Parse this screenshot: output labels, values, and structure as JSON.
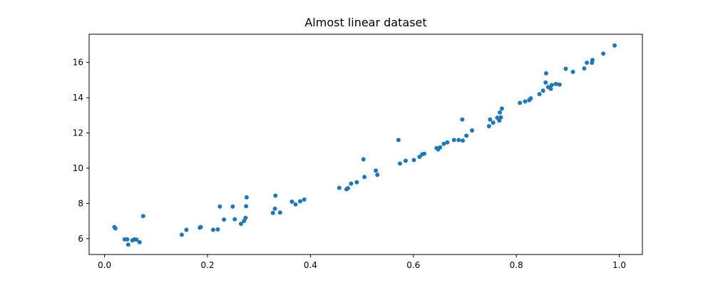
{
  "chart_data": {
    "type": "scatter",
    "title": "Almost linear dataset",
    "xlabel": "",
    "ylabel": "",
    "xlim": [
      -0.03,
      1.045
    ],
    "ylim": [
      5.1,
      17.6
    ],
    "xticks": [
      0.0,
      0.2,
      0.4,
      0.6,
      0.8,
      1.0
    ],
    "xtick_labels": [
      "0.0",
      "0.2",
      "0.4",
      "0.6",
      "0.8",
      "1.0"
    ],
    "yticks": [
      6,
      8,
      10,
      12,
      14,
      16
    ],
    "ytick_labels": [
      "6",
      "8",
      "10",
      "12",
      "14",
      "16"
    ],
    "grid": false,
    "marker_color": "#1f77b4",
    "points": [
      {
        "x": 0.019,
        "y": 6.66
      },
      {
        "x": 0.021,
        "y": 6.58
      },
      {
        "x": 0.039,
        "y": 5.96
      },
      {
        "x": 0.044,
        "y": 5.96
      },
      {
        "x": 0.046,
        "y": 5.66
      },
      {
        "x": 0.054,
        "y": 5.9
      },
      {
        "x": 0.058,
        "y": 5.96
      },
      {
        "x": 0.062,
        "y": 5.94
      },
      {
        "x": 0.068,
        "y": 5.8
      },
      {
        "x": 0.075,
        "y": 7.28
      },
      {
        "x": 0.15,
        "y": 6.22
      },
      {
        "x": 0.159,
        "y": 6.5
      },
      {
        "x": 0.185,
        "y": 6.62
      },
      {
        "x": 0.187,
        "y": 6.66
      },
      {
        "x": 0.211,
        "y": 6.5
      },
      {
        "x": 0.22,
        "y": 6.52
      },
      {
        "x": 0.224,
        "y": 7.82
      },
      {
        "x": 0.232,
        "y": 7.08
      },
      {
        "x": 0.249,
        "y": 7.82
      },
      {
        "x": 0.253,
        "y": 7.1
      },
      {
        "x": 0.265,
        "y": 6.84
      },
      {
        "x": 0.271,
        "y": 7.0
      },
      {
        "x": 0.274,
        "y": 7.18
      },
      {
        "x": 0.275,
        "y": 7.84
      },
      {
        "x": 0.276,
        "y": 8.34
      },
      {
        "x": 0.327,
        "y": 7.46
      },
      {
        "x": 0.331,
        "y": 7.7
      },
      {
        "x": 0.332,
        "y": 8.44
      },
      {
        "x": 0.341,
        "y": 7.48
      },
      {
        "x": 0.364,
        "y": 8.1
      },
      {
        "x": 0.371,
        "y": 7.94
      },
      {
        "x": 0.38,
        "y": 8.12
      },
      {
        "x": 0.388,
        "y": 8.22
      },
      {
        "x": 0.456,
        "y": 8.88
      },
      {
        "x": 0.47,
        "y": 8.8
      },
      {
        "x": 0.473,
        "y": 8.86
      },
      {
        "x": 0.479,
        "y": 9.12
      },
      {
        "x": 0.49,
        "y": 9.2
      },
      {
        "x": 0.503,
        "y": 10.5
      },
      {
        "x": 0.505,
        "y": 9.5
      },
      {
        "x": 0.527,
        "y": 9.86
      },
      {
        "x": 0.53,
        "y": 9.62
      },
      {
        "x": 0.571,
        "y": 11.6
      },
      {
        "x": 0.574,
        "y": 10.26
      },
      {
        "x": 0.585,
        "y": 10.42
      },
      {
        "x": 0.601,
        "y": 10.46
      },
      {
        "x": 0.612,
        "y": 10.64
      },
      {
        "x": 0.617,
        "y": 10.78
      },
      {
        "x": 0.621,
        "y": 10.82
      },
      {
        "x": 0.645,
        "y": 11.14
      },
      {
        "x": 0.648,
        "y": 11.06
      },
      {
        "x": 0.652,
        "y": 11.18
      },
      {
        "x": 0.659,
        "y": 11.38
      },
      {
        "x": 0.666,
        "y": 11.46
      },
      {
        "x": 0.679,
        "y": 11.6
      },
      {
        "x": 0.688,
        "y": 11.6
      },
      {
        "x": 0.696,
        "y": 11.56
      },
      {
        "x": 0.695,
        "y": 12.76
      },
      {
        "x": 0.703,
        "y": 11.84
      },
      {
        "x": 0.714,
        "y": 12.14
      },
      {
        "x": 0.747,
        "y": 12.38
      },
      {
        "x": 0.749,
        "y": 12.76
      },
      {
        "x": 0.755,
        "y": 12.58
      },
      {
        "x": 0.763,
        "y": 12.86
      },
      {
        "x": 0.767,
        "y": 12.7
      },
      {
        "x": 0.768,
        "y": 13.16
      },
      {
        "x": 0.77,
        "y": 12.88
      },
      {
        "x": 0.772,
        "y": 13.38
      },
      {
        "x": 0.807,
        "y": 13.7
      },
      {
        "x": 0.817,
        "y": 13.78
      },
      {
        "x": 0.825,
        "y": 13.86
      },
      {
        "x": 0.828,
        "y": 13.96
      },
      {
        "x": 0.845,
        "y": 14.2
      },
      {
        "x": 0.852,
        "y": 14.4
      },
      {
        "x": 0.857,
        "y": 14.86
      },
      {
        "x": 0.858,
        "y": 15.38
      },
      {
        "x": 0.862,
        "y": 14.6
      },
      {
        "x": 0.867,
        "y": 14.5
      },
      {
        "x": 0.869,
        "y": 14.72
      },
      {
        "x": 0.877,
        "y": 14.78
      },
      {
        "x": 0.884,
        "y": 14.74
      },
      {
        "x": 0.896,
        "y": 15.64
      },
      {
        "x": 0.91,
        "y": 15.46
      },
      {
        "x": 0.932,
        "y": 15.66
      },
      {
        "x": 0.937,
        "y": 15.98
      },
      {
        "x": 0.947,
        "y": 15.98
      },
      {
        "x": 0.948,
        "y": 16.14
      },
      {
        "x": 0.969,
        "y": 16.5
      },
      {
        "x": 0.991,
        "y": 16.96
      }
    ]
  }
}
